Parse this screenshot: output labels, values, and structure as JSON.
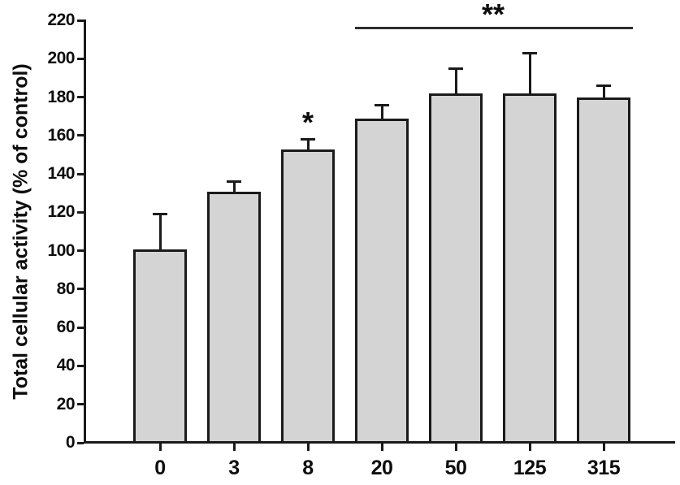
{
  "figure": {
    "background": "#ffffff",
    "text_color": "#0d0d0d",
    "axis_color": "#1a1a1a"
  },
  "chart_data": {
    "type": "bar",
    "title": "",
    "xlabel": "",
    "ylabel": "Total cellular activity (% of control)",
    "categories": [
      "0",
      "3",
      "8",
      "20",
      "50",
      "125",
      "315"
    ],
    "series": [
      {
        "name": "Total cellular activity",
        "values": [
          100,
          130,
          152,
          168,
          181,
          181,
          179
        ],
        "errors_upper": [
          19,
          6,
          6,
          8,
          14,
          22,
          7
        ]
      }
    ],
    "ylim": [
      0,
      220
    ],
    "yticks": [
      0,
      20,
      40,
      60,
      80,
      100,
      120,
      140,
      160,
      180,
      200,
      220
    ],
    "grid": false,
    "legend": "none",
    "bar_fill_color": "#d4d4d4",
    "bar_border_color": "#1a1a1a",
    "error_bar_color": "#1a1a1a",
    "sig_line_color": "#2e2e2e",
    "annotations": [
      {
        "kind": "star",
        "text": "*",
        "bar_index": 2,
        "y_value": 170
      },
      {
        "kind": "sig-bracket",
        "text": "**",
        "from_bar_index": 3,
        "to_bar_index": 6,
        "y_value": 216
      }
    ]
  }
}
